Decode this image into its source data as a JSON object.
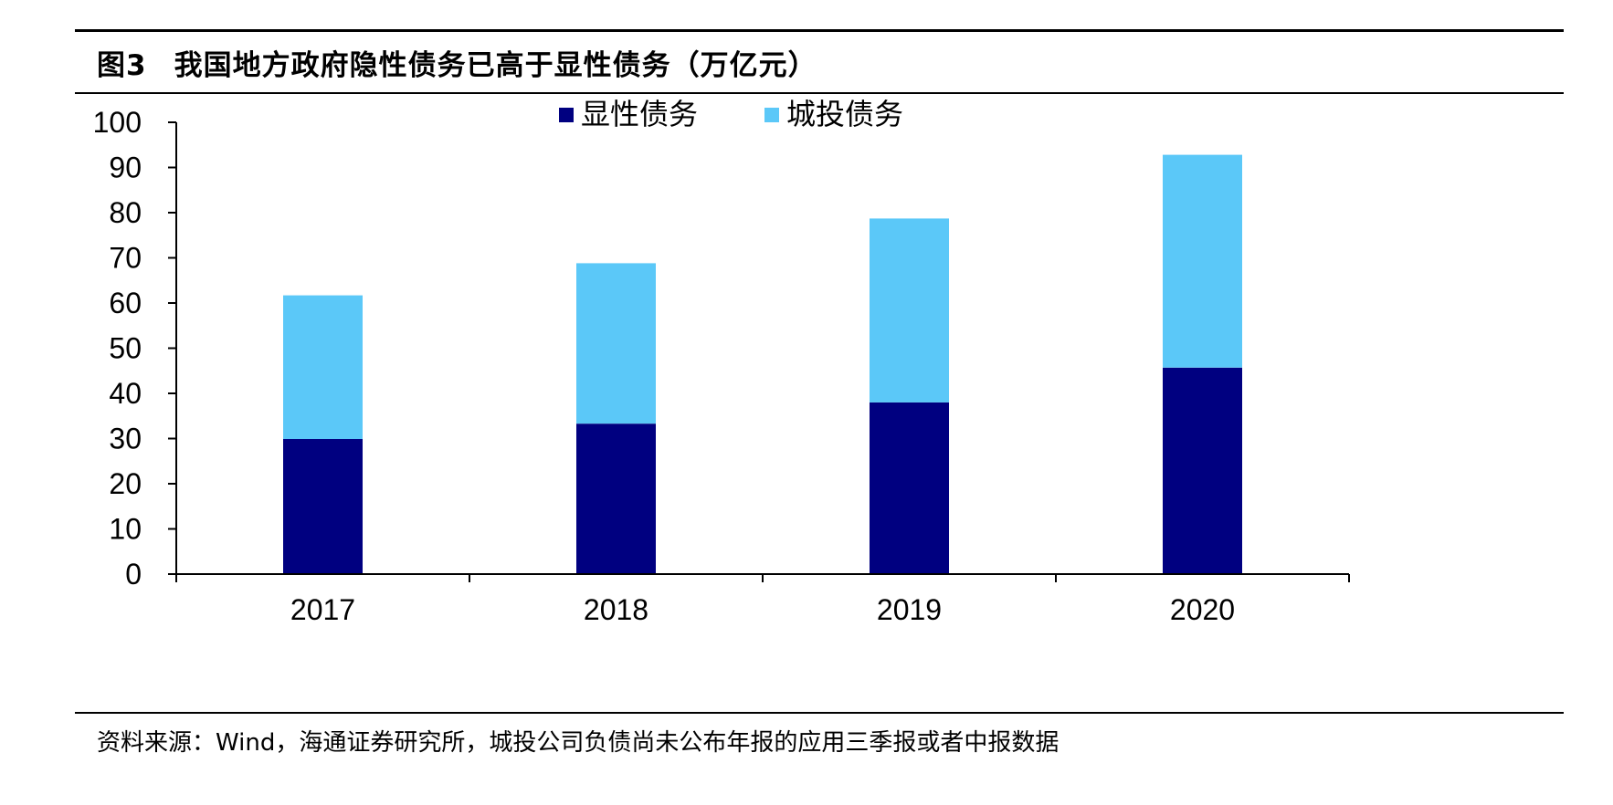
{
  "figure": {
    "number": "图3",
    "title": "我国地方政府隐性债务已高于显性债务（万亿元）",
    "source": "资料来源：Wind，海通证券研究所，城投公司负债尚未公布年报的应用三季报或者中报数据"
  },
  "chart_data": {
    "type": "bar",
    "stacked": true,
    "categories": [
      "2017",
      "2018",
      "2019",
      "2020"
    ],
    "series": [
      {
        "name": "显性债务",
        "values": [
          29.9,
          33.3,
          38.0,
          45.7
        ],
        "color": "#000080"
      },
      {
        "name": "城投债务",
        "values": [
          31.8,
          35.5,
          40.7,
          47.1
        ],
        "color": "#5BC8F8"
      }
    ],
    "ylim": [
      0,
      100
    ],
    "yticks": [
      0,
      10,
      20,
      30,
      40,
      50,
      60,
      70,
      80,
      90,
      100
    ],
    "grid": false,
    "legend": "top-center"
  }
}
